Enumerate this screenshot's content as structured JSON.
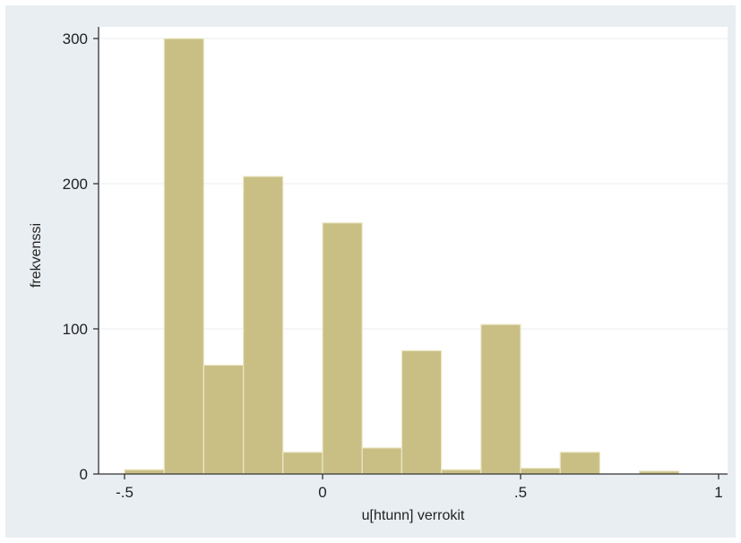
{
  "chart_data": {
    "type": "bar",
    "subtype": "histogram",
    "xlabel": "u[htunn] verrokit",
    "ylabel": "frekvenssi",
    "xlim": [
      -0.5,
      1
    ],
    "ylim": [
      0,
      300
    ],
    "xticks": [
      -0.5,
      0,
      0.5,
      1
    ],
    "xtick_labels": [
      "-.5",
      "0",
      ".5",
      "1"
    ],
    "yticks": [
      0,
      100,
      200,
      300
    ],
    "ytick_labels": [
      "0",
      "100",
      "200",
      "300"
    ],
    "bin_width": 0.1,
    "bins": [
      {
        "x0": -0.5,
        "x1": -0.4,
        "value": 3
      },
      {
        "x0": -0.4,
        "x1": -0.3,
        "value": 300
      },
      {
        "x0": -0.3,
        "x1": -0.2,
        "value": 75
      },
      {
        "x0": -0.2,
        "x1": -0.1,
        "value": 205
      },
      {
        "x0": -0.1,
        "x1": 0.0,
        "value": 15
      },
      {
        "x0": 0.0,
        "x1": 0.1,
        "value": 173
      },
      {
        "x0": 0.1,
        "x1": 0.2,
        "value": 18
      },
      {
        "x0": 0.2,
        "x1": 0.3,
        "value": 85
      },
      {
        "x0": 0.3,
        "x1": 0.4,
        "value": 3
      },
      {
        "x0": 0.4,
        "x1": 0.5,
        "value": 103
      },
      {
        "x0": 0.5,
        "x1": 0.6,
        "value": 4
      },
      {
        "x0": 0.6,
        "x1": 0.7,
        "value": 15
      },
      {
        "x0": 0.7,
        "x1": 0.8,
        "value": 0
      },
      {
        "x0": 0.8,
        "x1": 0.9,
        "value": 2
      }
    ],
    "grid": true,
    "colors": {
      "bar_fill": "#c9bf85",
      "bar_edge": "#ede8c7",
      "plot_background": "#ffffff",
      "figure_background": "#e9eef2",
      "gridline": "#e8eef2",
      "axis": "#333333"
    }
  }
}
